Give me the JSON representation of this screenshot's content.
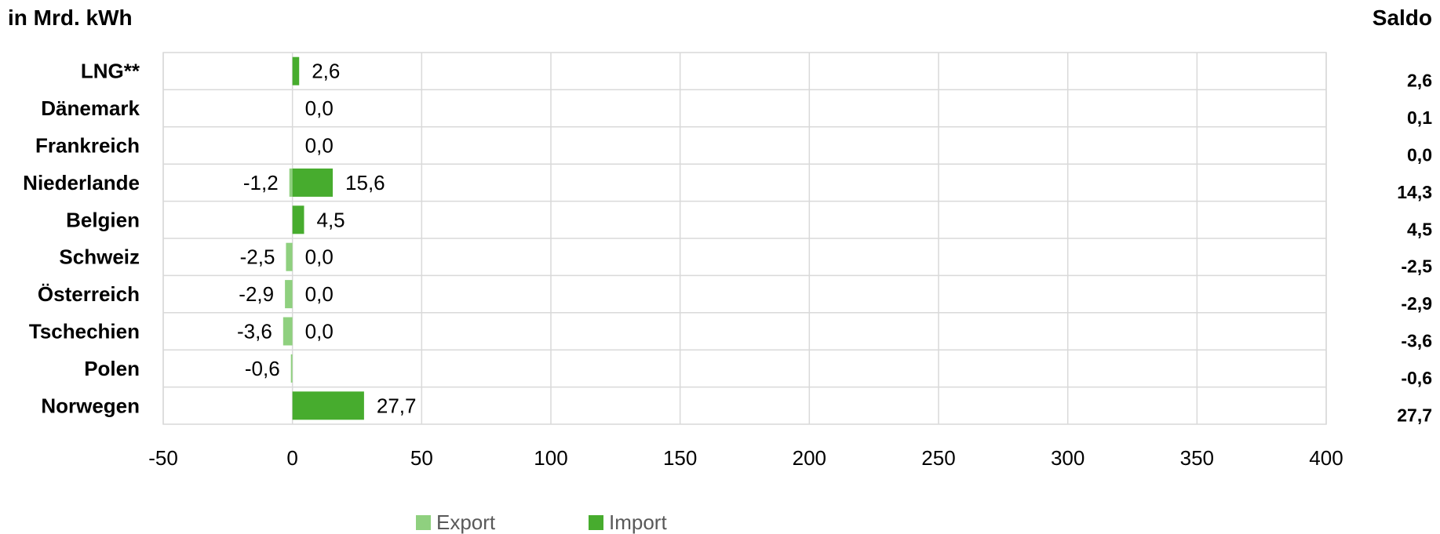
{
  "unit_label": "in Mrd. kWh",
  "saldo_header": "Saldo",
  "chart_data": {
    "type": "bar",
    "orientation": "horizontal",
    "title": "",
    "xlabel": "",
    "ylabel": "in Mrd. kWh",
    "xlim": [
      -50,
      400
    ],
    "x_ticks": [
      -50,
      0,
      50,
      100,
      150,
      200,
      250,
      300,
      350,
      400
    ],
    "x_tick_labels": [
      "-50",
      "0",
      "50",
      "100",
      "150",
      "200",
      "250",
      "300",
      "350",
      "400"
    ],
    "grid": true,
    "legend_position": "bottom",
    "categories": [
      "LNG**",
      "Dänemark",
      "Frankreich",
      "Niederlande",
      "Belgien",
      "Schweiz",
      "Österreich",
      "Tschechien",
      "Polen",
      "Norwegen"
    ],
    "series": [
      {
        "name": "Export",
        "color": "#8fd07f",
        "values": [
          null,
          null,
          null,
          -1.2,
          null,
          -2.5,
          -2.9,
          -3.6,
          -0.6,
          null
        ],
        "labels": [
          "",
          "",
          "",
          "-1,2",
          "",
          "-2,5",
          "-2,9",
          "-3,6",
          "-0,6",
          ""
        ]
      },
      {
        "name": "Import",
        "color": "#47ac2e",
        "values": [
          2.6,
          0.0,
          0.0,
          15.6,
          4.5,
          0.0,
          0.0,
          0.0,
          null,
          27.7
        ],
        "labels": [
          "2,6",
          "0,0",
          "0,0",
          "15,6",
          "4,5",
          "0,0",
          "0,0",
          "0,0",
          "",
          "27,7"
        ]
      }
    ],
    "saldo": [
      "2,6",
      "0,1",
      "0,0",
      "14,3",
      "4,5",
      "-2,5",
      "-2,9",
      "-3,6",
      "-0,6",
      "27,7"
    ]
  }
}
